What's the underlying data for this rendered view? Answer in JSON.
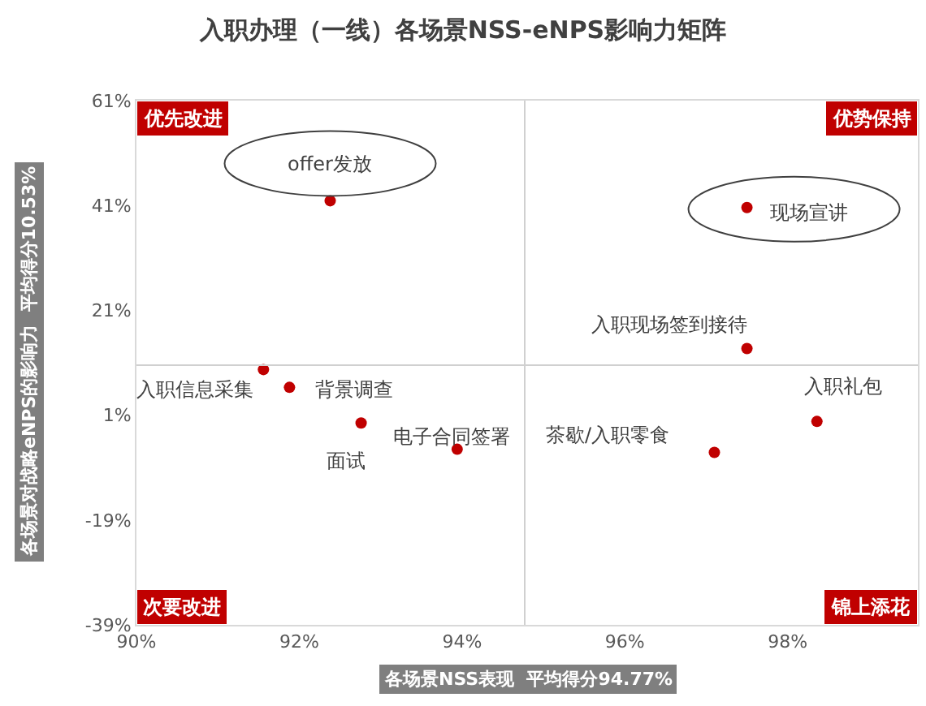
{
  "chart_data": {
    "type": "scatter",
    "title": "入职办理（一线）各场景NSS-eNPS影响力矩阵",
    "xlabel": "各场景NSS表现  平均得分94.77%",
    "ylabel": "各场景对战略eNPS的影响力  平均得分10.53%",
    "x": [
      92.38,
      91.56,
      91.88,
      92.76,
      93.94,
      97.5,
      97.5,
      98.36,
      97.1
    ],
    "series": [
      {
        "color": "#c00000",
        "values": [
          41.9,
          9.7,
          6.3,
          -0.5,
          -5.5,
          40.6,
          13.7,
          -0.2,
          -6.1
        ]
      }
    ],
    "marker": "circle",
    "xlim": [
      90,
      99.6
    ],
    "xticks": [
      {
        "value": 90,
        "label": "90%"
      },
      {
        "value": 92,
        "label": "92%"
      },
      {
        "value": 94,
        "label": "94%"
      },
      {
        "value": 96,
        "label": "96%"
      },
      {
        "value": 98,
        "label": "98%"
      }
    ],
    "ylim": [
      -39,
      61
    ],
    "yticks": [
      {
        "value": -39,
        "label": "-39%"
      },
      {
        "value": -19,
        "label": "-19%"
      },
      {
        "value": 1,
        "label": "1%"
      },
      {
        "value": 21,
        "label": "21%"
      },
      {
        "value": 41,
        "label": "41%"
      },
      {
        "value": 61,
        "label": "61%"
      }
    ],
    "ref_lines": [
      {
        "axis": "x",
        "value": 94.77,
        "color": "#d0d0d0"
      },
      {
        "axis": "y",
        "value": 10.53,
        "color": "#d0d0d0"
      }
    ],
    "annotations": [
      {
        "text": "offer发放",
        "x": 92.38,
        "y": 41.9
      },
      {
        "text": "入职信息采集",
        "x": 91.56,
        "y": 9.7
      },
      {
        "text": "背景调查",
        "x": 91.88,
        "y": 6.3
      },
      {
        "text": "面试",
        "x": 92.76,
        "y": -0.5
      },
      {
        "text": "电子合同签署",
        "x": 93.94,
        "y": -5.5
      },
      {
        "text": "现场宣讲",
        "x": 97.5,
        "y": 40.6
      },
      {
        "text": "入职现场签到接待",
        "x": 97.5,
        "y": 13.7
      },
      {
        "text": "入职礼包",
        "x": 98.36,
        "y": -0.2
      },
      {
        "text": "茶歇/入职零食",
        "x": 97.1,
        "y": -6.1
      },
      "优先改进",
      "优势保持",
      "次要改进",
      "锦上添花"
    ]
  }
}
